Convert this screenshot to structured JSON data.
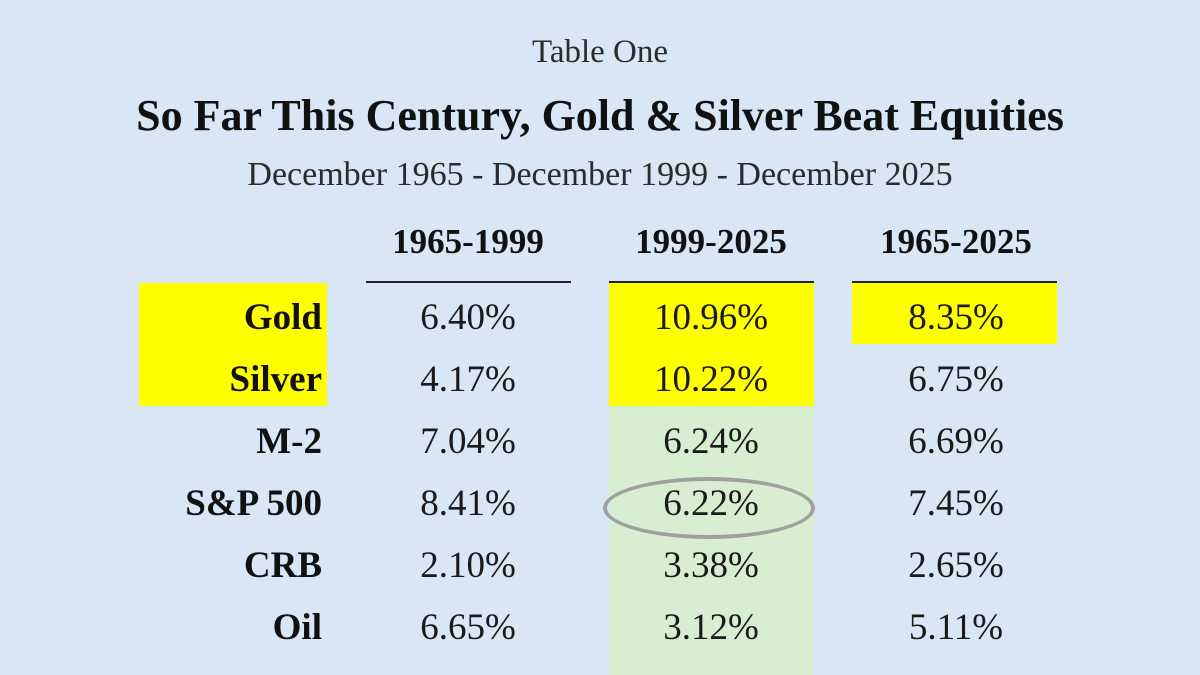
{
  "table": {
    "label": "Table One",
    "title": "So Far This Century, Gold & Silver Beat Equities",
    "subtitle": "December 1965 - December 1999 - December 2025",
    "columns": [
      "1965-1999",
      "1999-2025",
      "1965-2025"
    ],
    "rows": [
      {
        "name": "Gold",
        "values": [
          "6.40%",
          "10.96%",
          "8.35%"
        ]
      },
      {
        "name": "Silver",
        "values": [
          "4.17%",
          "10.22%",
          "6.75%"
        ]
      },
      {
        "name": "M-2",
        "values": [
          "7.04%",
          "6.24%",
          "6.69%"
        ]
      },
      {
        "name": "S&P 500",
        "values": [
          "8.41%",
          "6.22%",
          "7.45%"
        ]
      },
      {
        "name": "CRB",
        "values": [
          "2.10%",
          "3.38%",
          "2.65%"
        ]
      },
      {
        "name": "Oil",
        "values": [
          "6.65%",
          "3.12%",
          "5.11%"
        ]
      }
    ],
    "highlight_colors": {
      "yellow": "#ffff00",
      "green": "#d7eed0",
      "background": "#d9e6f6",
      "circle": "#a0a0a0"
    }
  }
}
